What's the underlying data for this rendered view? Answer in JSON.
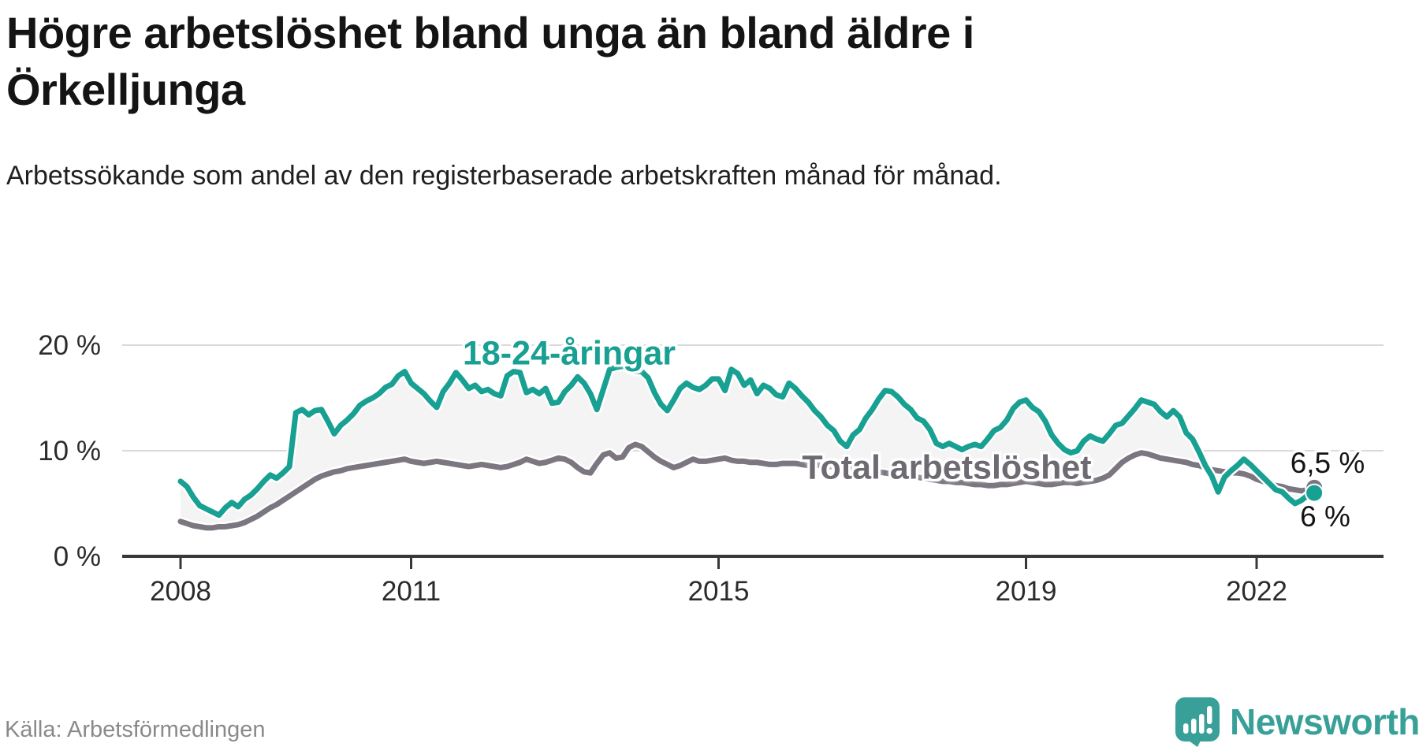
{
  "title": "Högre arbetslöshet bland unga än bland äldre i Örkelljunga",
  "subtitle": "Arbetssökande som andel av den registerbaserade arbetskraften månad för månad.",
  "source": "Källa: Arbetsförmedlingen",
  "branding": {
    "name": "Newsworthy"
  },
  "colors": {
    "grid": "#d9d9d9",
    "fill_between": "#f4f4f4",
    "axis": "#383838",
    "tick_text": "#2b2b2b",
    "halo": "#ffffff",
    "title_text": "#141414",
    "muted_text": "#8a8a8a",
    "brand_teal": "#38a099"
  },
  "chart_data": {
    "type": "line",
    "unit": "%",
    "frequency": "monthly",
    "x_start": "2008-01",
    "x_end": "2022-10",
    "grid": "horizontal",
    "ylim": [
      0,
      22
    ],
    "y_ticks": [
      {
        "label": "0 %",
        "value": 0
      },
      {
        "label": "10 %",
        "value": 10
      },
      {
        "label": "20 %",
        "value": 20
      }
    ],
    "x_ticks": [
      {
        "label": "2008",
        "month_index": 0
      },
      {
        "label": "2011",
        "month_index": 36
      },
      {
        "label": "2015",
        "month_index": 84
      },
      {
        "label": "2019",
        "month_index": 132
      },
      {
        "label": "2022",
        "month_index": 168
      }
    ],
    "series": [
      {
        "name": "18-24-åringar",
        "color": "#18a093",
        "end_label": "6 %",
        "end_value": 6.0,
        "values": [
          7.1,
          6.6,
          5.6,
          4.8,
          4.5,
          4.2,
          3.9,
          4.6,
          5.1,
          4.7,
          5.4,
          5.8,
          6.4,
          7.1,
          7.7,
          7.4,
          7.9,
          8.5,
          13.6,
          13.9,
          13.4,
          13.8,
          13.9,
          12.8,
          11.6,
          12.4,
          12.9,
          13.5,
          14.3,
          14.7,
          15.0,
          15.4,
          16.0,
          16.3,
          17.1,
          17.5,
          16.4,
          15.9,
          15.4,
          14.7,
          14.1,
          15.6,
          16.4,
          17.4,
          16.7,
          15.9,
          16.2,
          15.6,
          15.8,
          15.4,
          15.2,
          17.1,
          17.5,
          17.4,
          15.5,
          15.8,
          15.4,
          15.9,
          14.5,
          14.6,
          15.6,
          16.2,
          17.0,
          16.4,
          15.4,
          13.9,
          15.8,
          17.7,
          17.9,
          18.0,
          17.8,
          17.5,
          17.5,
          16.9,
          15.5,
          14.4,
          13.8,
          14.8,
          15.9,
          16.4,
          16.0,
          15.8,
          16.2,
          16.8,
          16.8,
          15.7,
          17.7,
          17.3,
          16.2,
          16.7,
          15.4,
          16.2,
          15.9,
          15.3,
          15.1,
          16.4,
          15.9,
          15.2,
          14.6,
          13.8,
          13.2,
          12.4,
          11.9,
          10.9,
          10.4,
          11.5,
          12.0,
          13.1,
          13.9,
          14.9,
          15.7,
          15.6,
          15.1,
          14.4,
          13.9,
          13.1,
          12.8,
          12.0,
          10.7,
          10.4,
          10.7,
          10.4,
          10.1,
          10.4,
          10.6,
          10.4,
          11.1,
          11.9,
          12.2,
          12.9,
          14.0,
          14.6,
          14.8,
          14.1,
          13.7,
          12.8,
          11.5,
          10.7,
          10.1,
          9.8,
          10.0,
          10.9,
          11.4,
          11.1,
          10.9,
          11.6,
          12.4,
          12.6,
          13.3,
          14.0,
          14.8,
          14.6,
          14.4,
          13.7,
          13.2,
          13.8,
          13.2,
          11.7,
          11.1,
          9.9,
          8.6,
          7.6,
          6.1,
          7.5,
          8.1,
          8.6,
          9.2,
          8.7,
          8.1,
          7.5,
          6.9,
          6.3,
          6.1,
          5.5,
          5.0,
          5.3,
          5.8,
          6.0
        ]
      },
      {
        "name": "Total arbetslöshet",
        "color": "#7b7680",
        "end_label": "6,5 %",
        "end_value": 6.5,
        "values": [
          3.3,
          3.1,
          2.9,
          2.8,
          2.7,
          2.7,
          2.8,
          2.8,
          2.9,
          3.0,
          3.2,
          3.5,
          3.8,
          4.2,
          4.6,
          4.9,
          5.3,
          5.7,
          6.1,
          6.5,
          6.9,
          7.3,
          7.6,
          7.8,
          8.0,
          8.1,
          8.3,
          8.4,
          8.5,
          8.6,
          8.7,
          8.8,
          8.9,
          9.0,
          9.1,
          9.2,
          9.0,
          8.9,
          8.8,
          8.9,
          9.0,
          8.9,
          8.8,
          8.7,
          8.6,
          8.5,
          8.6,
          8.7,
          8.6,
          8.5,
          8.4,
          8.5,
          8.7,
          8.9,
          9.2,
          9.0,
          8.8,
          8.9,
          9.1,
          9.3,
          9.2,
          8.9,
          8.4,
          8.0,
          7.9,
          8.8,
          9.6,
          9.8,
          9.3,
          9.4,
          10.3,
          10.6,
          10.4,
          9.9,
          9.4,
          9.0,
          8.7,
          8.4,
          8.6,
          8.9,
          9.2,
          9.0,
          9.0,
          9.1,
          9.2,
          9.3,
          9.1,
          9.0,
          9.0,
          8.9,
          8.9,
          8.8,
          8.7,
          8.7,
          8.8,
          8.8,
          8.8,
          8.7,
          8.6,
          8.7,
          8.6,
          8.5,
          8.5,
          8.4,
          8.3,
          8.3,
          8.2,
          8.1,
          8.0,
          8.0,
          7.9,
          7.8,
          7.8,
          7.7,
          7.6,
          7.5,
          7.4,
          7.3,
          7.2,
          7.1,
          7.1,
          7.0,
          7.0,
          6.9,
          6.8,
          6.8,
          6.7,
          6.7,
          6.8,
          6.8,
          6.9,
          7.0,
          7.1,
          7.0,
          6.9,
          6.8,
          6.8,
          6.9,
          7.0,
          7.0,
          6.9,
          7.0,
          7.1,
          7.2,
          7.4,
          7.7,
          8.3,
          8.9,
          9.3,
          9.6,
          9.8,
          9.7,
          9.5,
          9.3,
          9.2,
          9.1,
          9.0,
          8.9,
          8.7,
          8.6,
          8.4,
          8.2,
          8.1,
          8.0,
          7.9,
          7.9,
          7.8,
          7.6,
          7.3,
          7.1,
          6.9,
          6.7,
          6.6,
          6.4,
          6.3,
          6.2,
          6.3,
          6.5
        ]
      }
    ]
  }
}
